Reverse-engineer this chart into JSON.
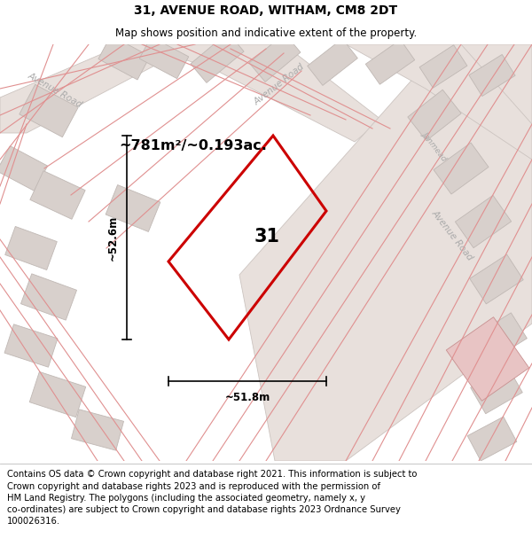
{
  "title": "31, AVENUE ROAD, WITHAM, CM8 2DT",
  "subtitle": "Map shows position and indicative extent of the property.",
  "footer_line1": "Contains OS data © Crown copyright and database right 2021. This information is subject to",
  "footer_line2": "Crown copyright and database rights 2023 and is reproduced with the permission of",
  "footer_line3": "HM Land Registry. The polygons (including the associated geometry, namely x, y",
  "footer_line4": "co-ordinates) are subject to Crown copyright and database rights 2023 Ordnance Survey",
  "footer_line5": "100026316.",
  "area_label": "~781m²/~0.193ac.",
  "width_label": "~51.8m",
  "height_label": "~52.6m",
  "number_label": "31",
  "title_fontsize": 10,
  "subtitle_fontsize": 8.5,
  "footer_fontsize": 7.2,
  "map_bg": "#f5eeea",
  "plot_color": "#cc0000",
  "building_color": "#d8d0cc",
  "building_edge": "#c0b8b4",
  "road_fill": "#e8e0dc",
  "road_edge": "#ccc4c0",
  "road_line_color": "#e09090",
  "pink_bld_color": "#e8c4c4",
  "pink_bld_edge": "#c89090"
}
